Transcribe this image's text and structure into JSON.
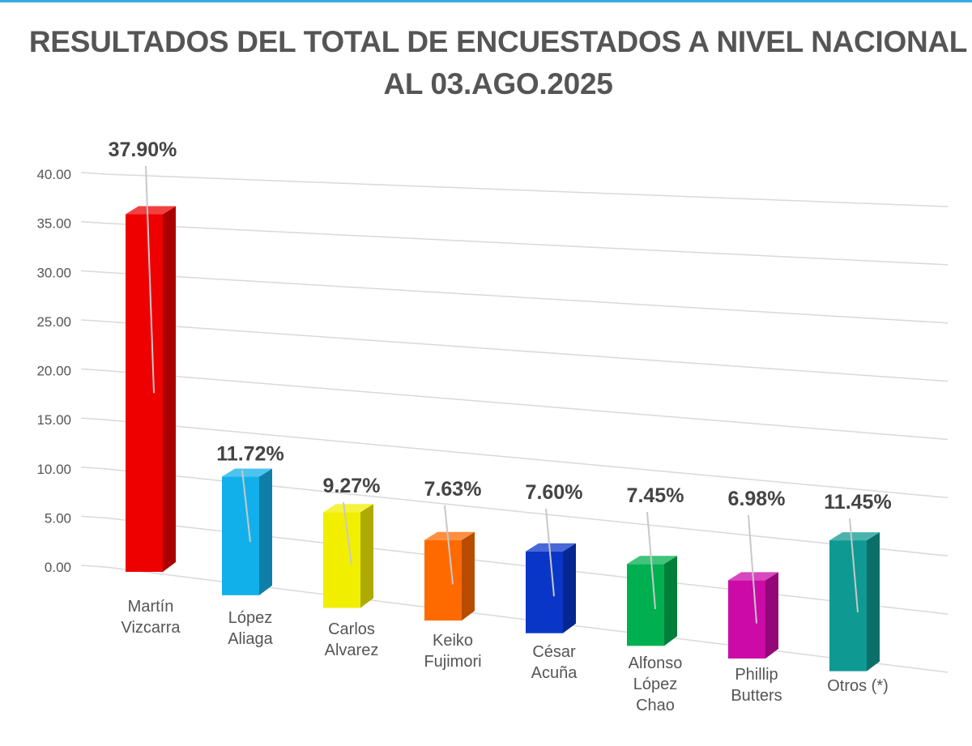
{
  "chart_data": {
    "type": "bar",
    "title": [
      "RESULTADOS DEL TOTAL DE ENCUESTADOS A NIVEL NACIONAL",
      "AL 03.AGO.2025"
    ],
    "xlabel": "",
    "ylabel": "",
    "ylim": [
      0,
      40
    ],
    "yticks": [
      "0.00",
      "5.00",
      "10.00",
      "15.00",
      "20.00",
      "25.00",
      "30.00",
      "35.00",
      "40.00"
    ],
    "grid": true,
    "legend": "none",
    "style": "3d-column",
    "categories": [
      [
        "Martín",
        "Vizcarra"
      ],
      [
        "López",
        "Aliaga"
      ],
      [
        "Carlos",
        "Alvarez"
      ],
      [
        "Keiko",
        "Fujimori"
      ],
      [
        "César",
        "Acuña"
      ],
      [
        "Alfonso",
        "López",
        "Chao"
      ],
      [
        "Phillip",
        "Butters"
      ],
      [
        "Otros (*)"
      ]
    ],
    "values": [
      37.9,
      11.72,
      9.27,
      7.63,
      7.6,
      7.45,
      6.98,
      11.45
    ],
    "data_labels": [
      "37.90%",
      "11.72%",
      "9.27%",
      "7.63%",
      "7.60%",
      "7.45%",
      "6.98%",
      "11.45%"
    ],
    "colors": [
      "#ee0000",
      "#12b0ea",
      "#f2ee00",
      "#ff6a00",
      "#0a36c8",
      "#00b050",
      "#cc0aa8",
      "#0e9a92"
    ]
  }
}
